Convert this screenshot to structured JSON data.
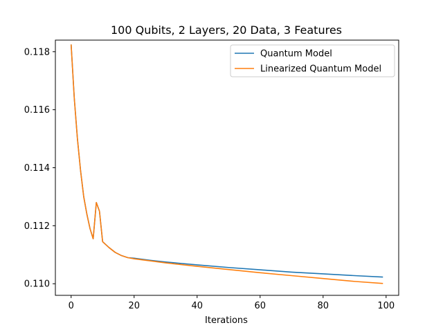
{
  "chart_data": {
    "type": "line",
    "title": "100 Qubits, 2 Layers, 20 Data, 3 Features",
    "xlabel": "Iterations",
    "ylabel": "",
    "xlim": [
      -5,
      104
    ],
    "ylim": [
      0.1096,
      0.1184
    ],
    "xticks": [
      0,
      20,
      40,
      60,
      80,
      100
    ],
    "yticks": [
      0.11,
      0.112,
      0.114,
      0.116,
      0.118
    ],
    "ytick_labels": [
      "0.110",
      "0.112",
      "0.114",
      "0.116",
      "0.118"
    ],
    "legend_position": "top-right",
    "grid": false,
    "series": [
      {
        "name": "Quantum Model",
        "color": "#1f77b4",
        "x": [
          0,
          1,
          2,
          3,
          4,
          5,
          6,
          7,
          8,
          9,
          10,
          12,
          14,
          16,
          18,
          20,
          25,
          30,
          40,
          50,
          60,
          70,
          80,
          90,
          99
        ],
        "y": [
          0.11825,
          0.1164,
          0.115,
          0.1139,
          0.113,
          0.1124,
          0.1119,
          0.11155,
          0.1128,
          0.1125,
          0.11145,
          0.11125,
          0.11108,
          0.11097,
          0.1109,
          0.11088,
          0.11081,
          0.11075,
          0.11065,
          0.11056,
          0.11048,
          0.1104,
          0.11034,
          0.11028,
          0.11023
        ]
      },
      {
        "name": "Linearized Quantum Model",
        "color": "#ff7f0e",
        "x": [
          0,
          1,
          2,
          3,
          4,
          5,
          6,
          7,
          8,
          9,
          10,
          12,
          14,
          16,
          18,
          20,
          25,
          30,
          40,
          50,
          60,
          70,
          80,
          90,
          99
        ],
        "y": [
          0.11825,
          0.1164,
          0.115,
          0.1139,
          0.113,
          0.1124,
          0.1119,
          0.11155,
          0.1128,
          0.1125,
          0.11145,
          0.11125,
          0.11108,
          0.11097,
          0.1109,
          0.11086,
          0.11079,
          0.11072,
          0.1106,
          0.11049,
          0.11038,
          0.11028,
          0.11018,
          0.11008,
          0.11001
        ]
      }
    ]
  }
}
